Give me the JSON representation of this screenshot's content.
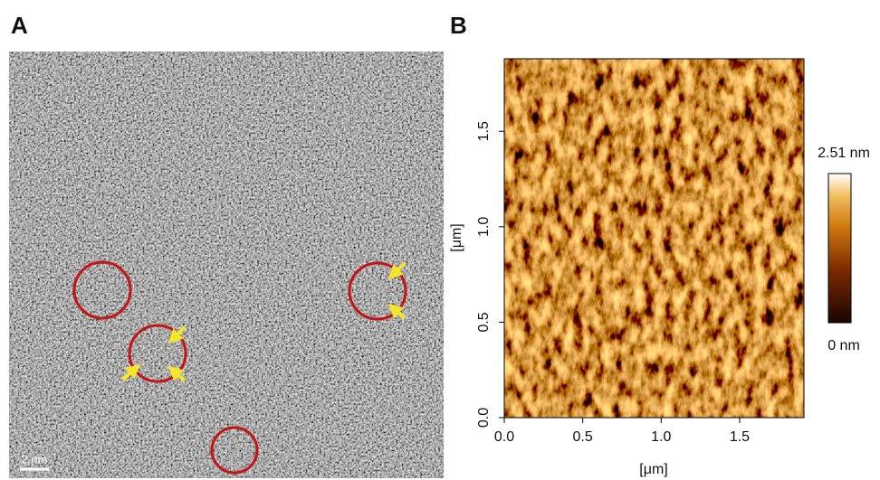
{
  "panels": [
    {
      "label": "A",
      "scale_bar": "2 nm"
    },
    {
      "label": "B",
      "x_axis": {
        "label": "[μm]",
        "lim": [
          0,
          1.91
        ],
        "ticks": [
          {
            "value": 0,
            "label": "0.0"
          },
          0.5,
          {
            "value": 1,
            "label": "1.0"
          },
          1.5
        ]
      },
      "y_axis": {
        "label": "[μm]",
        "lim": [
          0,
          1.88
        ],
        "ticks": [
          {
            "value": 0,
            "label": "0.0"
          },
          0.5,
          {
            "value": 1,
            "label": "1.0"
          },
          1.5
        ]
      },
      "colorbar": {
        "lim": [
          0,
          2.51
        ],
        "ticks": [
          {
            "value": 0,
            "label": "0 nm"
          },
          {
            "value": 2.51,
            "label": "2.51 nm"
          }
        ]
      }
    }
  ]
}
